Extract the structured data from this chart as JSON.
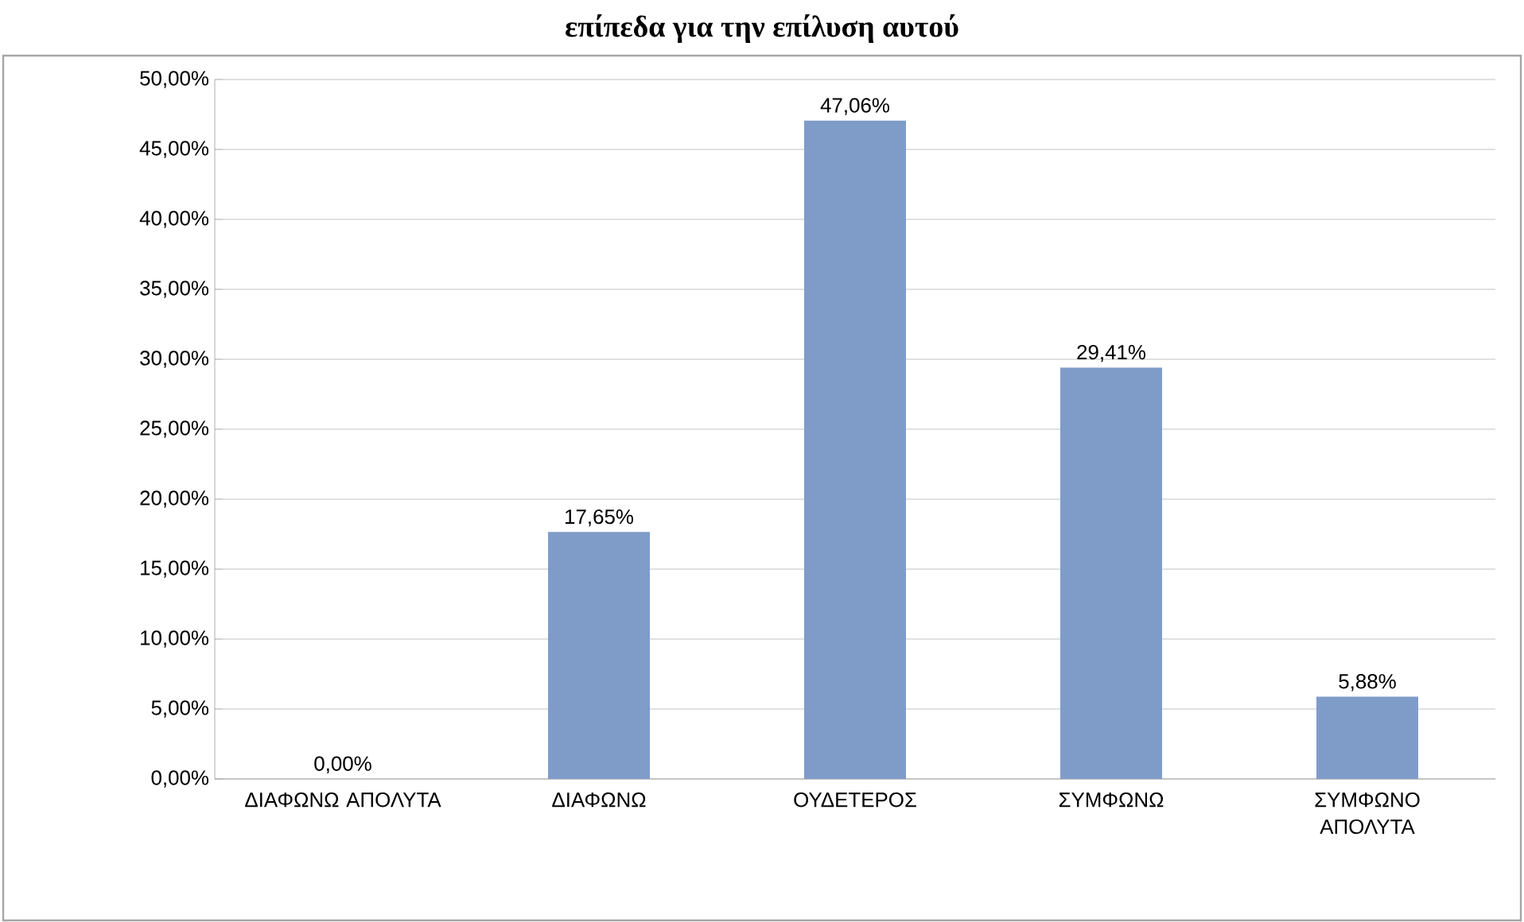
{
  "chart_data": {
    "type": "bar",
    "title": "επίπεδα για την επίλυση αυτού",
    "categories": [
      "ΔΙΑΦΩΝΩ ΑΠΟΛΥΤΑ",
      "ΔΙΑΦΩΝΩ",
      "ΟΥΔΕΤΕΡΟΣ",
      "ΣΥΜΦΩΝΩ",
      "ΣΥΜΦΩΝΟ ΑΠΟΛΥΤΑ"
    ],
    "values": [
      0,
      17.65,
      47.06,
      29.41,
      5.88
    ],
    "value_labels": [
      "0,00%",
      "17,65%",
      "47,06%",
      "29,41%",
      "5,88%"
    ],
    "color": "#7f9cc9",
    "ylim": [
      0,
      50
    ],
    "yticks": [
      {
        "value": 0,
        "label": "0,00%"
      },
      {
        "value": 5,
        "label": "5,00%"
      },
      {
        "value": 10,
        "label": "10,00%"
      },
      {
        "value": 15,
        "label": "15,00%"
      },
      {
        "value": 20,
        "label": "20,00%"
      },
      {
        "value": 25,
        "label": "25,00%"
      },
      {
        "value": 30,
        "label": "30,00%"
      },
      {
        "value": 35,
        "label": "35,00%"
      },
      {
        "value": 40,
        "label": "40,00%"
      },
      {
        "value": 45,
        "label": "45,00%"
      },
      {
        "value": 50,
        "label": "50,00%"
      }
    ],
    "grid": "y"
  }
}
